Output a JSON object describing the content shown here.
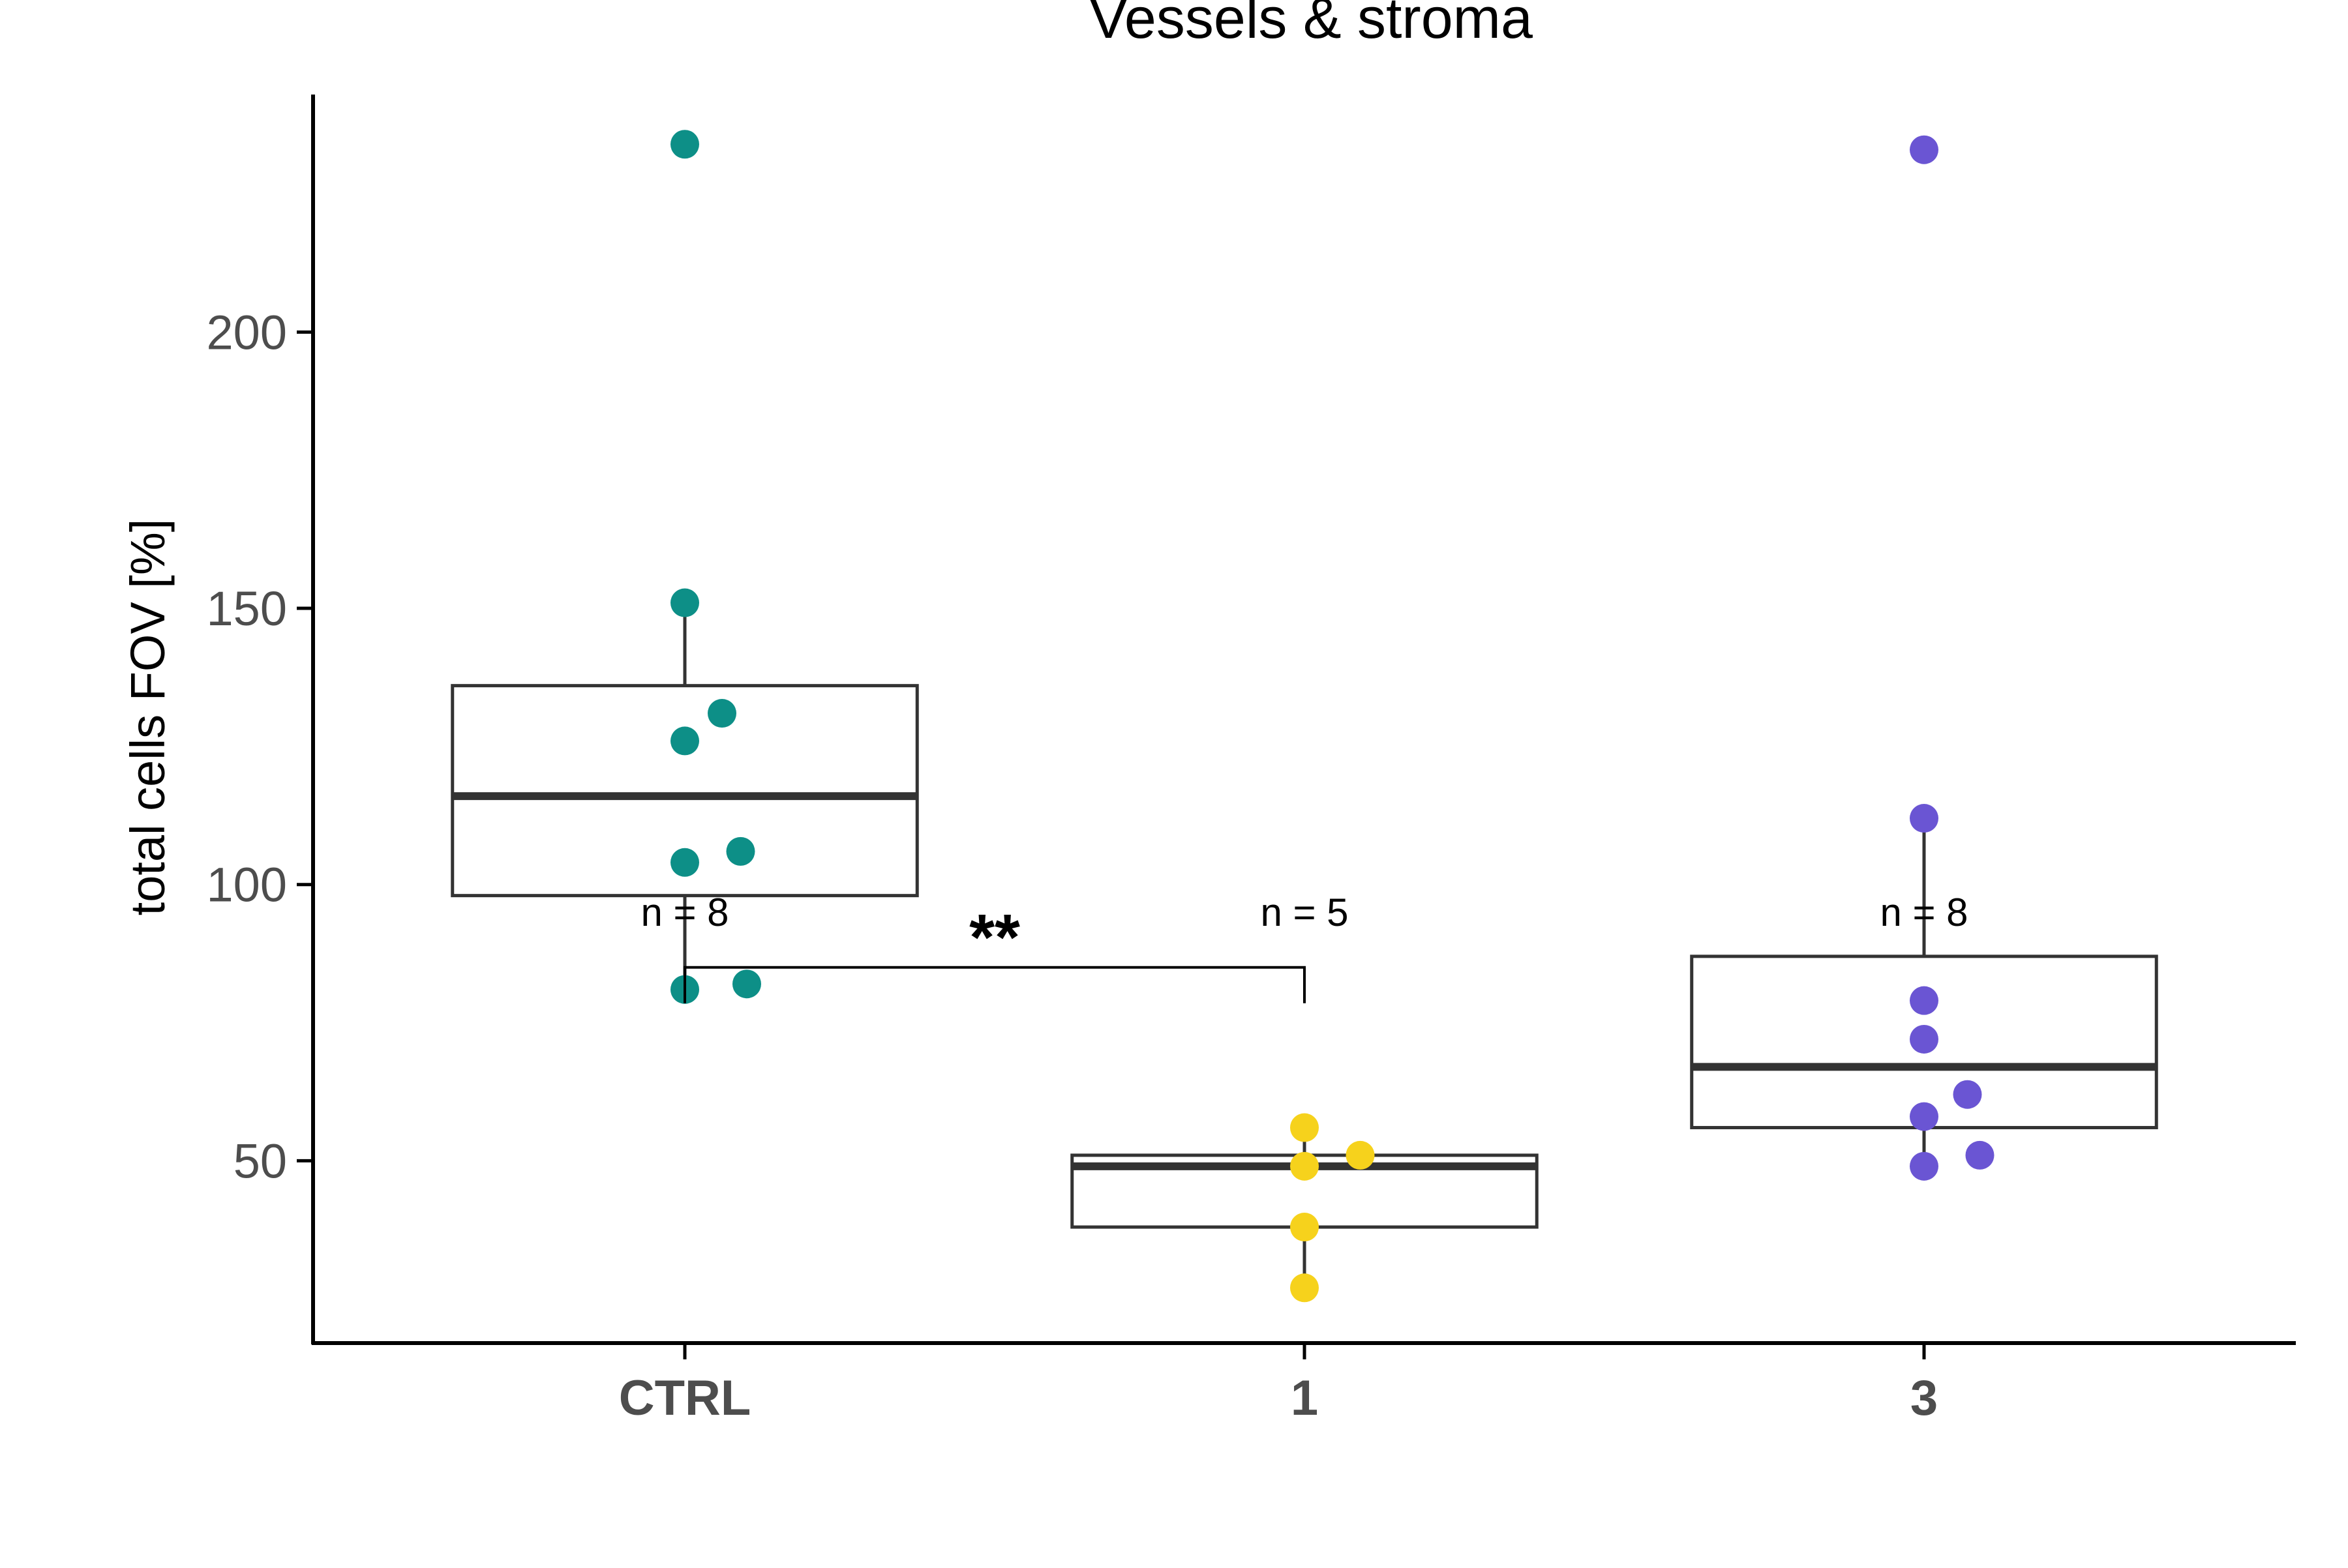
{
  "chart_data": {
    "type": "box",
    "title": "Vessels & stroma",
    "xlabel": "",
    "ylabel": "total cells FOV [%]",
    "ylim": [
      17,
      243
    ],
    "yticks": [
      50,
      100,
      150,
      200
    ],
    "categories": [
      "CTRL",
      "1",
      "3"
    ],
    "colors": {
      "CTRL": "#0d8f87",
      "1": "#f6d21c",
      "3": "#6a55d3",
      "box": "#333333",
      "axis": "#000000",
      "tick_label": "#4d4d4d"
    },
    "groups": [
      {
        "name": "CTRL",
        "n_label": "n = 8",
        "box": {
          "whisker_low": 81,
          "q1": 98,
          "median": 116,
          "q3": 136,
          "whisker_high": 151
        },
        "points": [
          {
            "x_jitter": 0.0,
            "y": 234
          },
          {
            "x_jitter": 0.0,
            "y": 151
          },
          {
            "x_jitter": 0.06,
            "y": 131
          },
          {
            "x_jitter": 0.0,
            "y": 126
          },
          {
            "x_jitter": 0.0,
            "y": 104
          },
          {
            "x_jitter": 0.09,
            "y": 106
          },
          {
            "x_jitter": 0.0,
            "y": 81
          },
          {
            "x_jitter": 0.1,
            "y": 82
          }
        ]
      },
      {
        "name": "1",
        "n_label": "n = 5",
        "box": {
          "whisker_low": 27,
          "q1": 38,
          "median": 49,
          "q3": 51,
          "whisker_high": 56
        },
        "points": [
          {
            "x_jitter": 0.0,
            "y": 56
          },
          {
            "x_jitter": 0.0,
            "y": 49
          },
          {
            "x_jitter": 0.09,
            "y": 51
          },
          {
            "x_jitter": 0.0,
            "y": 38
          },
          {
            "x_jitter": 0.0,
            "y": 27
          }
        ]
      },
      {
        "name": "3",
        "n_label": "n = 8",
        "box": {
          "whisker_low": 49,
          "q1": 56,
          "median": 67,
          "q3": 87,
          "whisker_high": 112
        },
        "points": [
          {
            "x_jitter": 0.0,
            "y": 233
          },
          {
            "x_jitter": 0.0,
            "y": 112
          },
          {
            "x_jitter": 0.0,
            "y": 79
          },
          {
            "x_jitter": 0.0,
            "y": 72
          },
          {
            "x_jitter": 0.07,
            "y": 62
          },
          {
            "x_jitter": 0.0,
            "y": 58
          },
          {
            "x_jitter": 0.09,
            "y": 51
          },
          {
            "x_jitter": 0.0,
            "y": 49
          }
        ]
      }
    ],
    "significance": [
      {
        "from": "CTRL",
        "to": "1",
        "y": 85,
        "label": "**"
      }
    ]
  }
}
